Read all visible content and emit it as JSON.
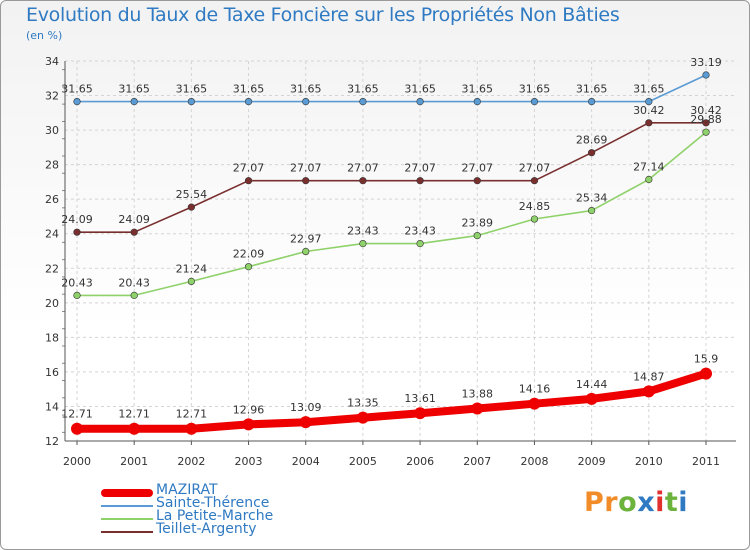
{
  "header": {
    "title": "Evolution du Taux de Taxe Foncière sur les Propriétés Non Bâties",
    "unit": "(en %)"
  },
  "logo": {
    "letters": [
      "P",
      "r",
      "o",
      "x",
      "i",
      "t",
      "i"
    ],
    "colors": [
      "#f28c28",
      "#f28c28",
      "#6cb33e",
      "#2f7ac2",
      "#e0312f",
      "#6cb33e",
      "#2f7ac2"
    ]
  },
  "chart_data": {
    "type": "line",
    "title": "Evolution du Taux de Taxe Foncière sur les Propriétés Non Bâties",
    "ylabel": "(en %)",
    "xlabel": "",
    "ylim": [
      12,
      34
    ],
    "yticks": [
      "12",
      "14",
      "16",
      "18",
      "20",
      "22",
      "24",
      "26",
      "28",
      "30",
      "32",
      "34"
    ],
    "x": [
      "2000",
      "2001",
      "2002",
      "2003",
      "2004",
      "2005",
      "2006",
      "2007",
      "2008",
      "2009",
      "2010",
      "2011"
    ],
    "series": [
      {
        "name": "Sainte-Thérence",
        "color": "#5a9bd4",
        "bold": false,
        "values": [
          31.65,
          31.65,
          31.65,
          31.65,
          31.65,
          31.65,
          31.65,
          31.65,
          31.65,
          31.65,
          31.65,
          33.19
        ],
        "labels": [
          "31.65",
          "31.65",
          "31.65",
          "31.65",
          "31.65",
          "31.65",
          "31.65",
          "31.65",
          "31.65",
          "31.65",
          "31.65",
          "33.19"
        ]
      },
      {
        "name": "Teillet-Argenty",
        "color": "#7a2f2f",
        "bold": false,
        "values": [
          24.09,
          24.09,
          25.54,
          27.07,
          27.07,
          27.07,
          27.07,
          27.07,
          27.07,
          28.69,
          30.42,
          30.42
        ],
        "labels": [
          "24.09",
          "24.09",
          "25.54",
          "27.07",
          "27.07",
          "27.07",
          "27.07",
          "27.07",
          "27.07",
          "28.69",
          "30.42",
          "30.42"
        ]
      },
      {
        "name": "La Petite-Marche",
        "color": "#8fd16a",
        "bold": false,
        "values": [
          20.43,
          20.43,
          21.24,
          22.09,
          22.97,
          23.43,
          23.43,
          23.89,
          24.85,
          25.34,
          27.14,
          29.88
        ],
        "labels": [
          "20.43",
          "20.43",
          "21.24",
          "22.09",
          "22.97",
          "23.43",
          "23.43",
          "23.89",
          "24.85",
          "25.34",
          "27.14",
          "29.88"
        ]
      },
      {
        "name": "MAZIRAT",
        "color": "#ee0000",
        "bold": true,
        "values": [
          12.71,
          12.71,
          12.71,
          12.96,
          13.09,
          13.35,
          13.61,
          13.88,
          14.16,
          14.44,
          14.87,
          15.9
        ],
        "labels": [
          "12.71",
          "12.71",
          "12.71",
          "12.96",
          "13.09",
          "13.35",
          "13.61",
          "13.88",
          "14.16",
          "14.44",
          "14.87",
          "15.9"
        ]
      }
    ],
    "legend": [
      {
        "name": "MAZIRAT",
        "color": "#ee0000"
      },
      {
        "name": "Sainte-Thérence",
        "color": "#5a9bd4"
      },
      {
        "name": "La Petite-Marche",
        "color": "#8fd16a"
      },
      {
        "name": "Teillet-Argenty",
        "color": "#7a2f2f"
      }
    ]
  }
}
